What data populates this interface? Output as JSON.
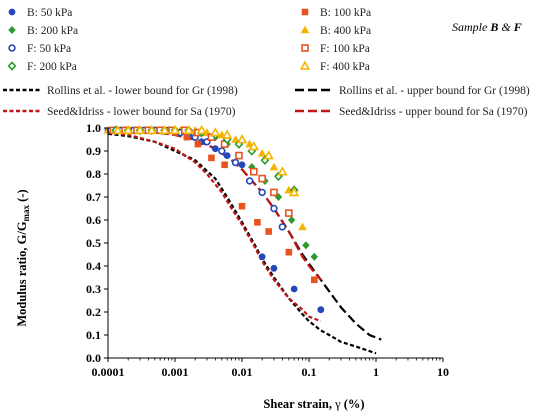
{
  "chart_data": {
    "type": "scatter",
    "x_scale": "log",
    "xlim": [
      0.0001,
      10
    ],
    "ylim": [
      0,
      1
    ],
    "x_ticks": [
      "0.0001",
      "0.001",
      "0.01",
      "0.1",
      "1",
      "10"
    ],
    "y_ticks": [
      "0.0",
      "0.1",
      "0.2",
      "0.3",
      "0.4",
      "0.5",
      "0.6",
      "0.7",
      "0.8",
      "0.9",
      "1.0"
    ],
    "xlabel_main": "Shear strain, ",
    "xlabel_symbol": "γ",
    "xlabel_unit": " (%)",
    "ylabel_main": "Modulus ratio, G/G",
    "ylabel_sub": "max",
    "ylabel_unit": " (-)",
    "annotation": {
      "prefix": "Sample ",
      "b": "B",
      "amp": " & ",
      "f": "F"
    },
    "legend_placement": "top",
    "grid": false,
    "series": [
      {
        "name": "B: 50 kPa",
        "marker": "circle",
        "filled": true,
        "color": "#2448b8",
        "x": [
          0.0001,
          0.00013,
          0.00018,
          0.00025,
          0.0004,
          0.0006,
          0.001,
          0.0016,
          0.0025,
          0.004,
          0.006,
          0.01,
          0.02,
          0.03,
          0.06,
          0.15
        ],
        "y": [
          0.99,
          0.99,
          0.99,
          0.99,
          0.99,
          0.99,
          0.98,
          0.97,
          0.94,
          0.91,
          0.88,
          0.84,
          0.44,
          0.39,
          0.3,
          0.21
        ]
      },
      {
        "name": "B: 100 kPa",
        "marker": "square",
        "filled": true,
        "color": "#e8541e",
        "x": [
          0.00015,
          0.00022,
          0.0003,
          0.00045,
          0.0007,
          0.001,
          0.0015,
          0.0022,
          0.0035,
          0.0055,
          0.01,
          0.017,
          0.025,
          0.05,
          0.12
        ],
        "y": [
          0.99,
          0.99,
          0.99,
          0.99,
          0.99,
          0.98,
          0.96,
          0.93,
          0.87,
          0.84,
          0.66,
          0.59,
          0.55,
          0.46,
          0.34
        ]
      },
      {
        "name": "B: 200 kPa",
        "marker": "diamond",
        "filled": true,
        "color": "#2e9a2e",
        "x": [
          0.00012,
          0.00018,
          0.00025,
          0.0004,
          0.0006,
          0.001,
          0.0015,
          0.0025,
          0.004,
          0.006,
          0.009,
          0.014,
          0.022,
          0.035,
          0.055,
          0.09,
          0.12
        ],
        "y": [
          0.99,
          0.99,
          0.99,
          0.99,
          0.99,
          0.99,
          0.99,
          0.98,
          0.96,
          0.93,
          0.88,
          0.83,
          0.77,
          0.7,
          0.6,
          0.49,
          0.44
        ]
      },
      {
        "name": "B: 400 kPa",
        "marker": "triangle",
        "filled": true,
        "color": "#f5b400",
        "x": [
          0.0001,
          0.00015,
          0.00022,
          0.00035,
          0.0005,
          0.0008,
          0.0012,
          0.002,
          0.003,
          0.005,
          0.008,
          0.013,
          0.02,
          0.03,
          0.05,
          0.08
        ],
        "y": [
          0.99,
          0.99,
          0.99,
          0.99,
          0.99,
          0.99,
          0.99,
          0.99,
          0.98,
          0.97,
          0.95,
          0.93,
          0.89,
          0.83,
          0.73,
          0.57
        ]
      },
      {
        "name": "F: 50 kPa",
        "marker": "circle",
        "filled": false,
        "color": "#2448b8",
        "x": [
          0.00011,
          0.00016,
          0.00024,
          0.00035,
          0.0005,
          0.0008,
          0.0012,
          0.002,
          0.003,
          0.005,
          0.008,
          0.013,
          0.02,
          0.03,
          0.04
        ],
        "y": [
          0.99,
          0.99,
          0.99,
          0.99,
          0.99,
          0.99,
          0.98,
          0.96,
          0.94,
          0.9,
          0.85,
          0.77,
          0.72,
          0.65,
          0.57
        ]
      },
      {
        "name": "F: 100 kPa",
        "marker": "square",
        "filled": false,
        "color": "#e8541e",
        "x": [
          0.00012,
          0.00018,
          0.00027,
          0.0004,
          0.0006,
          0.0009,
          0.0014,
          0.0022,
          0.0035,
          0.0055,
          0.009,
          0.015,
          0.02,
          0.03,
          0.05
        ],
        "y": [
          0.99,
          0.99,
          0.99,
          0.99,
          0.99,
          0.99,
          0.99,
          0.98,
          0.96,
          0.93,
          0.88,
          0.81,
          0.78,
          0.72,
          0.63
        ]
      },
      {
        "name": "F: 200 kPa",
        "marker": "diamond",
        "filled": false,
        "color": "#2e9a2e",
        "x": [
          0.00013,
          0.0002,
          0.0003,
          0.00045,
          0.0007,
          0.001,
          0.0016,
          0.0025,
          0.004,
          0.006,
          0.009,
          0.014,
          0.022,
          0.035,
          0.06
        ],
        "y": [
          0.99,
          0.99,
          0.99,
          0.99,
          0.99,
          0.99,
          0.99,
          0.98,
          0.97,
          0.95,
          0.93,
          0.9,
          0.86,
          0.79,
          0.73
        ]
      },
      {
        "name": "F: 400 kPa",
        "marker": "triangle",
        "filled": false,
        "color": "#f5b400",
        "x": [
          0.00014,
          0.0002,
          0.0003,
          0.00045,
          0.0007,
          0.001,
          0.0016,
          0.0025,
          0.004,
          0.006,
          0.01,
          0.015,
          0.025,
          0.04,
          0.06
        ],
        "y": [
          0.99,
          0.99,
          0.99,
          0.99,
          0.99,
          0.99,
          0.99,
          0.99,
          0.98,
          0.97,
          0.95,
          0.92,
          0.88,
          0.81,
          0.72
        ]
      }
    ],
    "curves": [
      {
        "name": "Rollins et al. - lower bound for Gr (1998)",
        "color": "#000000",
        "dash": "short",
        "x": [
          0.0001,
          0.0002,
          0.0005,
          0.001,
          0.002,
          0.004,
          0.006,
          0.01,
          0.015,
          0.02,
          0.03,
          0.05,
          0.08,
          0.1,
          0.15,
          0.2,
          0.3,
          0.5,
          0.8,
          1.0
        ],
        "y": [
          0.975,
          0.965,
          0.94,
          0.9,
          0.86,
          0.78,
          0.7,
          0.59,
          0.5,
          0.43,
          0.35,
          0.26,
          0.19,
          0.16,
          0.12,
          0.1,
          0.07,
          0.05,
          0.03,
          0.02
        ]
      },
      {
        "name": "Rollins et al. - upper bound for Gr (1998)",
        "color": "#000000",
        "dash": "long",
        "x": [
          0.0001,
          0.0003,
          0.001,
          0.002,
          0.004,
          0.007,
          0.01,
          0.02,
          0.03,
          0.05,
          0.08,
          0.1,
          0.15,
          0.2,
          0.3,
          0.5,
          0.8,
          1.2
        ],
        "y": [
          0.995,
          0.99,
          0.97,
          0.95,
          0.91,
          0.86,
          0.82,
          0.72,
          0.65,
          0.55,
          0.45,
          0.41,
          0.34,
          0.29,
          0.22,
          0.15,
          0.1,
          0.08
        ]
      },
      {
        "name": "Seed&Idriss - lower bound for Sa (1970)",
        "color": "#c01515",
        "dash": "short",
        "x": [
          0.0001,
          0.0002,
          0.0005,
          0.001,
          0.002,
          0.003,
          0.005,
          0.007,
          0.01,
          0.015,
          0.02,
          0.03,
          0.05,
          0.08,
          0.1,
          0.15
        ],
        "y": [
          0.98,
          0.97,
          0.94,
          0.91,
          0.85,
          0.8,
          0.72,
          0.65,
          0.58,
          0.49,
          0.42,
          0.34,
          0.26,
          0.21,
          0.18,
          0.16
        ]
      },
      {
        "name": "Seed&Idriss - upper bound for Sa (1970)",
        "color": "#c01515",
        "dash": "long",
        "x": [
          0.0001,
          0.0003,
          0.001,
          0.002,
          0.004,
          0.007,
          0.01,
          0.02,
          0.03,
          0.05,
          0.08,
          0.1,
          0.15
        ],
        "y": [
          0.995,
          0.99,
          0.97,
          0.95,
          0.91,
          0.86,
          0.82,
          0.72,
          0.65,
          0.55,
          0.44,
          0.4,
          0.34
        ]
      }
    ]
  }
}
